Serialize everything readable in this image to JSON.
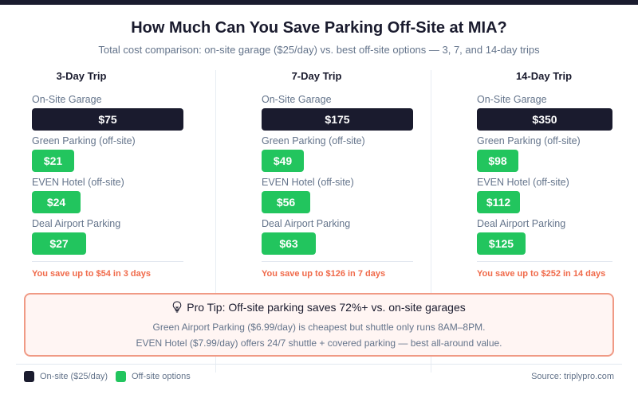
{
  "header": {
    "title": "How Much Can You Save Parking Off-Site at MIA?",
    "subtitle": "Total cost comparison: on-site garage ($25/day) vs. best off-site options — 3, 7, and 14-day trips"
  },
  "colors": {
    "onsite": "#1a1b2e",
    "offsite": "#22c55e",
    "savings_text": "#f06a4a",
    "tip_border": "#f09a85",
    "tip_bg": "#fff5f3"
  },
  "chart_data": {
    "type": "bar",
    "orientation": "horizontal",
    "title": "How Much Can You Save Parking Off-Site at MIA?",
    "subtitle": "Total cost comparison: on-site garage ($25/day) vs. best off-site options — 3, 7, and 14-day trips",
    "categories": [
      "On-Site Garage",
      "Green Parking (off-site)",
      "EVEN Hotel (off-site)",
      "Deal Airport Parking"
    ],
    "panels": [
      {
        "title": "3-Day Trip",
        "values": [
          75,
          21,
          24,
          27
        ],
        "labels": [
          "$75",
          "$21",
          "$24",
          "$27"
        ],
        "savings": "You save up to $54 in 3 days"
      },
      {
        "title": "7-Day Trip",
        "values": [
          175,
          49,
          56,
          63
        ],
        "labels": [
          "$175",
          "$49",
          "$56",
          "$63"
        ],
        "savings": "You save up to $126 in 7 days"
      },
      {
        "title": "14-Day Trip",
        "values": [
          350,
          98,
          112,
          125
        ],
        "labels": [
          "$350",
          "$98",
          "$112",
          "$125"
        ],
        "savings": "You save up to $252 in 14 days"
      }
    ],
    "legend": [
      {
        "label": "On-site ($25/day)",
        "series": "onsite"
      },
      {
        "label": "Off-site options",
        "series": "offsite"
      }
    ],
    "legend_position": "bottom-left"
  },
  "tip": {
    "icon": "lightbulb-icon",
    "heading": "Pro Tip: Off-site parking saves 72%+ vs. on-site garages",
    "line1": "Green Airport Parking ($6.99/day) is cheapest but shuttle only runs 8AM–8PM.",
    "line2": "EVEN Hotel ($7.99/day) offers 24/7 shuttle + covered parking — best all-around value."
  },
  "footer": {
    "source": "Source: triplypro.com"
  }
}
